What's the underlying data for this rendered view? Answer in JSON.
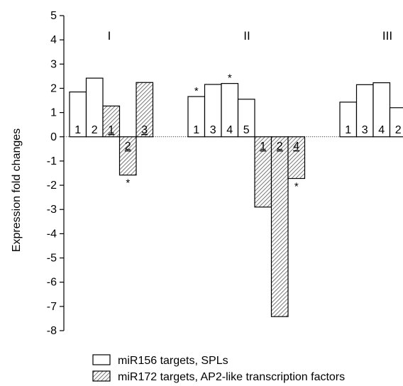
{
  "chart_data": {
    "type": "bar",
    "title": "",
    "xlabel": "",
    "ylabel": "Expression fold changes",
    "ylim": [
      -8,
      5
    ],
    "yticks": [
      5,
      4,
      3,
      2,
      1,
      0,
      -1,
      -2,
      -3,
      -4,
      -5,
      -6,
      -7,
      -8
    ],
    "ytick_labels": [
      "5",
      "4",
      "3",
      "2",
      "1",
      "0",
      "-1",
      "-2",
      "-3",
      "-4",
      "-5",
      "-6",
      "-7",
      "-8"
    ],
    "grid": false,
    "legend_position": "bottom",
    "groups": [
      {
        "name": "I",
        "bars": [
          {
            "label": "1",
            "series": "miR156",
            "value": 1.85,
            "star": false
          },
          {
            "label": "2",
            "series": "miR156",
            "value": 2.42,
            "star": false
          },
          {
            "label": "1",
            "series": "miR172",
            "value": 1.27,
            "star": false
          },
          {
            "label": "2",
            "series": "miR172",
            "value": -1.58,
            "star": true
          },
          {
            "label": "3",
            "series": "miR172",
            "value": 2.24,
            "star": false
          }
        ]
      },
      {
        "name": "II",
        "bars": [
          {
            "label": "1",
            "series": "miR156",
            "value": 1.66,
            "star": true
          },
          {
            "label": "3",
            "series": "miR156",
            "value": 2.16,
            "star": false
          },
          {
            "label": "4",
            "series": "miR156",
            "value": 2.2,
            "star": true
          },
          {
            "label": "5",
            "series": "miR156",
            "value": 1.55,
            "star": false
          },
          {
            "label": "1",
            "series": "miR172",
            "value": -2.9,
            "star": false
          },
          {
            "label": "2",
            "series": "miR172",
            "value": -7.42,
            "star": false
          },
          {
            "label": "4",
            "series": "miR172",
            "value": -1.72,
            "star": true
          }
        ]
      },
      {
        "name": "III",
        "bars": [
          {
            "label": "1",
            "series": "miR156",
            "value": 1.43,
            "star": false
          },
          {
            "label": "3",
            "series": "miR156",
            "value": 2.15,
            "star": false
          },
          {
            "label": "4",
            "series": "miR156",
            "value": 2.23,
            "star": false
          },
          {
            "label": "2",
            "series": "miR156",
            "value": 1.2,
            "star": false
          }
        ]
      }
    ],
    "star_label": "*",
    "series": [
      {
        "id": "miR156",
        "name": "miR156 targets, SPLs",
        "pattern": "open"
      },
      {
        "id": "miR172",
        "name": "miR172 targets, AP2-like transcription factors",
        "pattern": "hatched"
      }
    ]
  },
  "colors": {
    "stroke": "#000000",
    "hatch": "#555555",
    "background": "#ffffff"
  }
}
